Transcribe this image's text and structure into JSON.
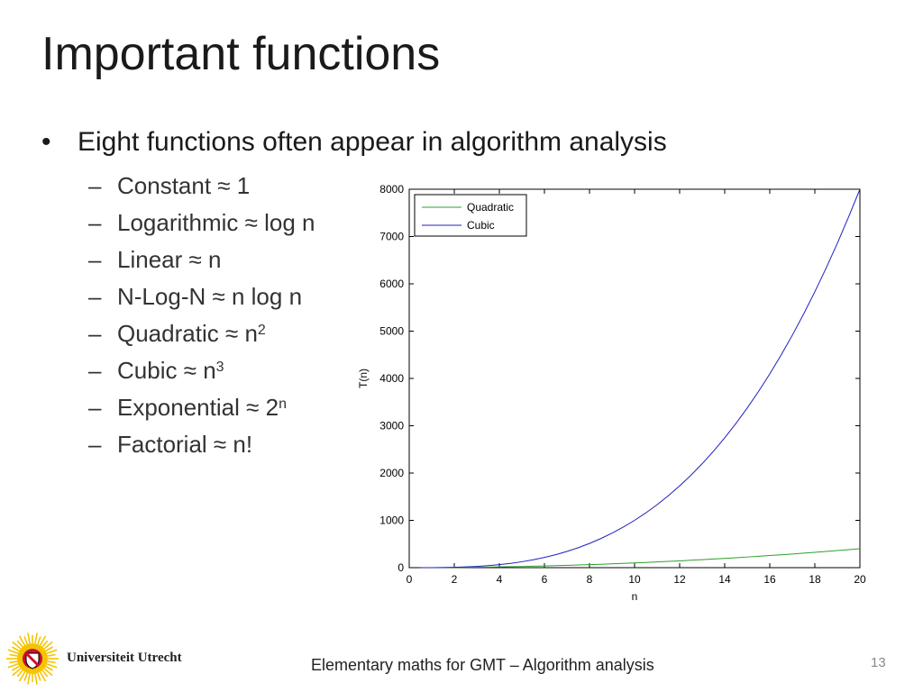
{
  "slide": {
    "title": "Important functions",
    "bullet": "Eight functions often appear in algorithm analysis",
    "items": [
      {
        "dash": "–",
        "text": "Constant  ≈ 1",
        "sup": ""
      },
      {
        "dash": "–",
        "text": "Logarithmic  ≈ log n",
        "sup": ""
      },
      {
        "dash": "–",
        "text": "Linear ≈ n",
        "sup": ""
      },
      {
        "dash": "–",
        "text": "N-Log-N ≈ n log n",
        "sup": ""
      },
      {
        "dash": "–",
        "text": "Quadratic ≈ n",
        "sup": "2"
      },
      {
        "dash": "–",
        "text": "Cubic ≈ n",
        "sup": "3"
      },
      {
        "dash": "–",
        "text": "Exponential ≈ 2",
        "sup": "n"
      },
      {
        "dash": "–",
        "text": "Factorial ≈ n!",
        "sup": ""
      }
    ],
    "footer": "Elementary maths for GMT – Algorithm analysis",
    "page_number": "13",
    "university": "Universiteit Utrecht",
    "bullet_symbol": "•"
  },
  "chart_data": {
    "type": "line",
    "title": "",
    "xlabel": "n",
    "ylabel": "T(n)",
    "xlim": [
      0,
      20
    ],
    "ylim": [
      0,
      8000
    ],
    "xticks": [
      0,
      2,
      4,
      6,
      8,
      10,
      12,
      14,
      16,
      18,
      20
    ],
    "yticks": [
      0,
      1000,
      2000,
      3000,
      4000,
      5000,
      6000,
      7000,
      8000
    ],
    "legend_position": "top-left",
    "grid": false,
    "x": [
      0.5,
      1,
      1.5,
      2,
      2.5,
      3,
      3.5,
      4,
      4.5,
      5,
      5.5,
      6,
      6.5,
      7,
      7.5,
      8,
      8.5,
      9,
      9.5,
      10,
      10.5,
      11,
      11.5,
      12,
      12.5,
      13,
      13.5,
      14,
      14.5,
      15,
      15.5,
      16,
      16.5,
      17,
      17.5,
      18,
      18.5,
      19,
      19.5,
      20
    ],
    "series": [
      {
        "name": "Quadratic",
        "color": "#2ca02c",
        "values": [
          0.25,
          1,
          2.25,
          4,
          6.25,
          9,
          12.25,
          16,
          20.25,
          25,
          30.25,
          36,
          42.25,
          49,
          56.25,
          64,
          72.25,
          81,
          90.25,
          100,
          110.25,
          121,
          132.25,
          144,
          156.25,
          169,
          182.25,
          196,
          210.25,
          225,
          240.25,
          256,
          272.25,
          289,
          306.25,
          324,
          342.25,
          361,
          380.25,
          400
        ]
      },
      {
        "name": "Cubic",
        "color": "#1f1fbf",
        "values": [
          0.125,
          1,
          3.375,
          8,
          15.625,
          27,
          42.875,
          64,
          91.125,
          125,
          166.375,
          216,
          274.625,
          343,
          421.875,
          512,
          614.125,
          729,
          857.375,
          1000,
          1157.625,
          1331,
          1520.875,
          1728,
          1953.125,
          2197,
          2460.375,
          2744,
          3048.625,
          3375,
          3723.875,
          4096,
          4492.125,
          4913,
          5359.375,
          5832,
          6331.625,
          6859,
          7414.875,
          8000
        ]
      }
    ]
  }
}
